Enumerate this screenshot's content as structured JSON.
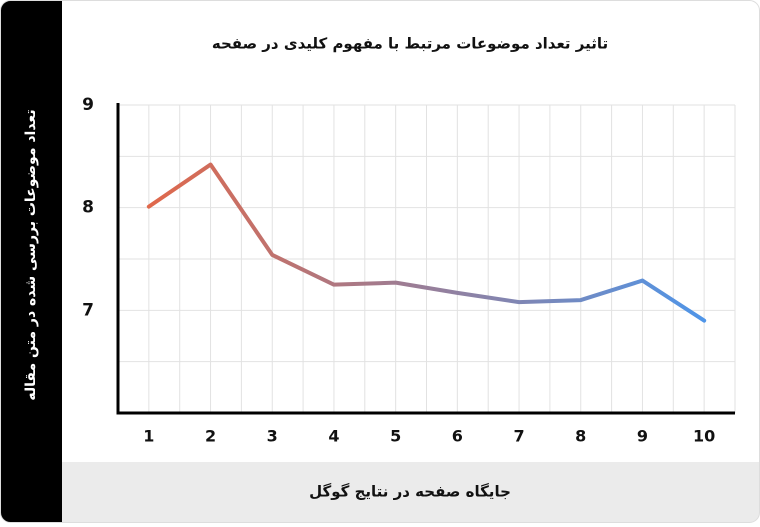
{
  "chart_data": {
    "type": "line",
    "title": "تاثیر تعداد موضوعات مرتبط با مفهوم کلیدی در صفحه",
    "x_label": "جایگاه صفحه در نتایج گوگل",
    "y_label": "تعداد موضوعات بررسی شده در متن مقاله",
    "categories": [
      "1",
      "2",
      "3",
      "4",
      "5",
      "6",
      "7",
      "8",
      "9",
      "10"
    ],
    "values": [
      8.01,
      8.42,
      7.54,
      7.25,
      7.27,
      7.17,
      7.08,
      7.1,
      7.29,
      6.9
    ],
    "line_colors": [
      "#e0684b",
      "#4f95e8"
    ],
    "ylim": [
      6,
      9
    ],
    "yticks": [
      7,
      8,
      9
    ],
    "minor_yticks": [
      6.5,
      7.5,
      8.5
    ],
    "grid": true
  }
}
